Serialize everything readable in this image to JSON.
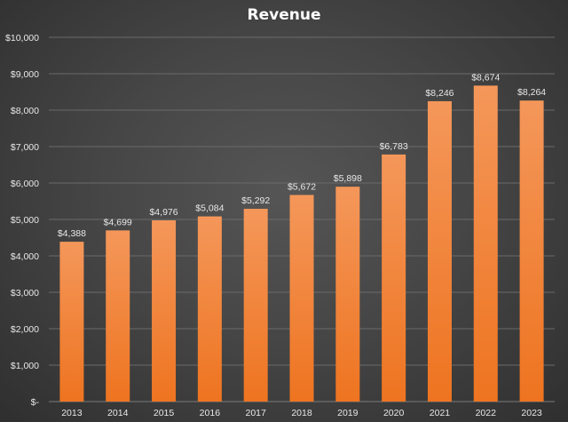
{
  "chart_data": {
    "type": "bar",
    "title": "Revenue",
    "xlabel": "",
    "ylabel": "",
    "categories": [
      "2013",
      "2014",
      "2015",
      "2016",
      "2017",
      "2018",
      "2019",
      "2020",
      "2021",
      "2022",
      "2023"
    ],
    "values": [
      4388,
      4699,
      4976,
      5084,
      5292,
      5672,
      5898,
      6783,
      8246,
      8674,
      8264
    ],
    "data_labels": [
      "$4,388",
      "$4,699",
      "$4,976",
      "$5,084",
      "$5,292",
      "$5,672",
      "$5,898",
      "$6,783",
      "$8,246",
      "$8,674",
      "$8,264"
    ],
    "ylim": [
      0,
      10000
    ],
    "y_ticks": [
      0,
      1000,
      2000,
      3000,
      4000,
      5000,
      6000,
      7000,
      8000,
      9000,
      10000
    ],
    "y_tick_labels": [
      "$-",
      "$1,000",
      "$2,000",
      "$3,000",
      "$4,000",
      "$5,000",
      "$6,000",
      "$7,000",
      "$8,000",
      "$9,000",
      "$10,000"
    ],
    "grid": true,
    "legend": "none",
    "colors": {
      "bar_top": "#f4975a",
      "bar_bottom": "#ee7420",
      "background": "#464646"
    }
  }
}
